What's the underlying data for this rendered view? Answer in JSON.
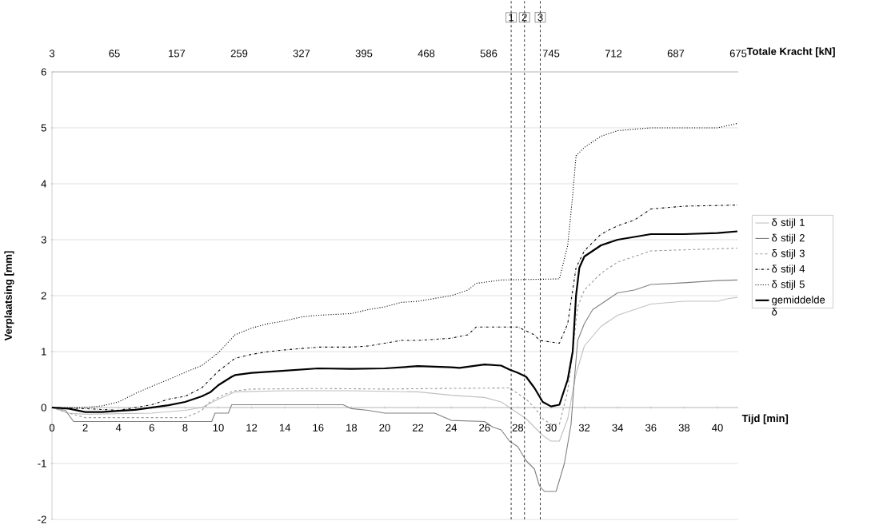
{
  "chart_data": {
    "type": "line",
    "xlabel": "Tijd [min]",
    "ylabel": "Verplaatsing [mm]",
    "x2label": "Totale Kracht [kN]",
    "xlim": [
      0,
      41.25
    ],
    "ylim": [
      -2,
      6
    ],
    "xticks": [
      0,
      2,
      4,
      6,
      8,
      10,
      12,
      14,
      16,
      18,
      20,
      22,
      24,
      26,
      28,
      30,
      32,
      34,
      36,
      38,
      40
    ],
    "yticks": [
      -2,
      -1,
      0,
      1,
      2,
      3,
      4,
      5,
      6
    ],
    "annotations": [
      "3",
      "65",
      "157",
      "259",
      "327",
      "395",
      "468",
      "586",
      "745",
      "712",
      "687",
      "675",
      "1",
      "2",
      "3"
    ],
    "grid": "y",
    "legend": "right",
    "ref_lines": [
      {
        "axis": "x",
        "value": 27.6,
        "line_style": "dashed",
        "color": "#000000"
      },
      {
        "axis": "x",
        "value": 28.4,
        "line_style": "dashed",
        "color": "#000000"
      },
      {
        "axis": "x",
        "value": 29.35,
        "line_style": "dashed",
        "color": "#000000"
      }
    ],
    "series": [
      {
        "name": "δ stijl 1",
        "color": "#c0c0c0",
        "line_style": "solid",
        "x": [
          0,
          1,
          2,
          6,
          8,
          9,
          10,
          11,
          14,
          18,
          22,
          24,
          26,
          27,
          27.5,
          28,
          28.5,
          29,
          29.5,
          30,
          30.5,
          31,
          31.5,
          32,
          33,
          34,
          35,
          36,
          38,
          40,
          40.7,
          41.2
        ],
        "values": [
          0,
          -0.1,
          -0.12,
          -0.1,
          -0.05,
          0.0,
          0.15,
          0.28,
          0.3,
          0.3,
          0.28,
          0.22,
          0.18,
          0.1,
          0.0,
          -0.1,
          -0.2,
          -0.35,
          -0.5,
          -0.6,
          -0.6,
          -0.2,
          0.6,
          1.1,
          1.45,
          1.65,
          1.75,
          1.85,
          1.9,
          1.9,
          1.95,
          1.97
        ]
      },
      {
        "name": "δ stijl 2",
        "color": "#808080",
        "line_style": "solid",
        "x": [
          0,
          0.8,
          1.3,
          9.6,
          9.8,
          10.6,
          10.8,
          17.5,
          18,
          19,
          20,
          23,
          24,
          26,
          26.5,
          27,
          27.5,
          28,
          28.5,
          29,
          29.3,
          29.6,
          30.3,
          30.8,
          31.2,
          31.4,
          31.6,
          32,
          32.5,
          33,
          34,
          35,
          36,
          38,
          40,
          41.2
        ],
        "values": [
          0,
          -0.05,
          -0.25,
          -0.25,
          -0.1,
          -0.1,
          0.05,
          0.05,
          -0.02,
          -0.05,
          -0.1,
          -0.1,
          -0.23,
          -0.25,
          -0.35,
          -0.4,
          -0.6,
          -0.7,
          -0.95,
          -1.1,
          -1.4,
          -1.5,
          -1.5,
          -1.0,
          -0.3,
          0.5,
          1.2,
          1.5,
          1.75,
          1.85,
          2.05,
          2.1,
          2.2,
          2.23,
          2.27,
          2.28
        ]
      },
      {
        "name": "δ stijl 3",
        "color": "#999999",
        "line_style": "dashed",
        "x": [
          0,
          1,
          2,
          4,
          6,
          8,
          8.5,
          9,
          9.5,
          10,
          10.5,
          11,
          12,
          16,
          20,
          23,
          27.5,
          28,
          28.5,
          29,
          29.5,
          30,
          30.5,
          31,
          31.3,
          31.6,
          32,
          33,
          34,
          35,
          36,
          41.2
        ],
        "values": [
          0,
          -0.1,
          -0.18,
          -0.18,
          -0.18,
          -0.18,
          -0.12,
          -0.05,
          0.1,
          0.18,
          0.25,
          0.3,
          0.33,
          0.34,
          0.33,
          0.34,
          0.35,
          0.25,
          0.15,
          0.0,
          -0.2,
          -0.3,
          -0.3,
          0.3,
          1.0,
          1.8,
          2.1,
          2.4,
          2.6,
          2.7,
          2.8,
          2.85
        ]
      },
      {
        "name": "δ stijl 4",
        "color": "#000000",
        "line_style": "dashdot",
        "x": [
          0,
          2,
          4,
          6,
          7,
          8,
          9,
          9.5,
          10,
          11,
          12,
          13,
          14,
          16,
          18,
          19,
          20,
          21,
          22,
          24,
          25,
          25.5,
          28,
          29,
          29.3,
          30.5,
          31,
          31.5,
          32,
          33,
          34,
          35,
          36,
          38,
          41.2
        ],
        "values": [
          0,
          -0.02,
          -0.05,
          0.05,
          0.15,
          0.2,
          0.35,
          0.5,
          0.65,
          0.88,
          0.95,
          1.0,
          1.03,
          1.08,
          1.08,
          1.1,
          1.15,
          1.2,
          1.2,
          1.24,
          1.3,
          1.44,
          1.44,
          1.3,
          1.2,
          1.15,
          1.5,
          2.5,
          2.8,
          3.1,
          3.25,
          3.35,
          3.55,
          3.6,
          3.62
        ]
      },
      {
        "name": "δ stijl 5",
        "color": "#000000",
        "line_style": "dotted",
        "x": [
          0,
          2,
          3,
          4,
          5,
          6,
          7,
          8,
          9,
          10,
          11,
          12,
          13,
          14,
          15,
          16,
          18,
          19,
          20,
          21,
          22,
          23,
          24,
          25,
          25.5,
          27,
          30.5,
          31,
          31.3,
          31.5,
          32,
          33,
          34,
          36,
          40,
          41.2
        ],
        "values": [
          0,
          0,
          0.03,
          0.1,
          0.25,
          0.38,
          0.5,
          0.63,
          0.75,
          0.98,
          1.3,
          1.42,
          1.5,
          1.55,
          1.62,
          1.65,
          1.68,
          1.75,
          1.8,
          1.88,
          1.9,
          1.95,
          2.0,
          2.1,
          2.22,
          2.28,
          2.3,
          2.9,
          3.8,
          4.5,
          4.65,
          4.85,
          4.95,
          5.0,
          5.0,
          5.08
        ]
      },
      {
        "name": "gemiddelde δ",
        "color": "#000000",
        "line_style": "solid",
        "x": [
          0,
          1,
          2,
          3,
          4,
          5,
          6,
          7,
          8,
          9,
          9.5,
          10,
          10.8,
          11,
          12,
          14,
          16,
          18,
          20,
          22,
          24,
          24.5,
          26,
          27,
          27.5,
          28,
          28.5,
          29,
          29.5,
          30,
          30.5,
          31,
          31.3,
          31.5,
          31.7,
          32,
          33,
          34,
          36,
          38,
          40,
          41.2
        ],
        "values": [
          0,
          -0.02,
          -0.08,
          -0.08,
          -0.06,
          -0.04,
          0.0,
          0.04,
          0.1,
          0.2,
          0.27,
          0.4,
          0.55,
          0.58,
          0.62,
          0.66,
          0.7,
          0.69,
          0.7,
          0.74,
          0.72,
          0.71,
          0.77,
          0.75,
          0.68,
          0.62,
          0.55,
          0.35,
          0.1,
          0.02,
          0.05,
          0.5,
          1.0,
          2.0,
          2.5,
          2.7,
          2.9,
          3.0,
          3.1,
          3.1,
          3.12,
          3.15
        ]
      }
    ]
  }
}
